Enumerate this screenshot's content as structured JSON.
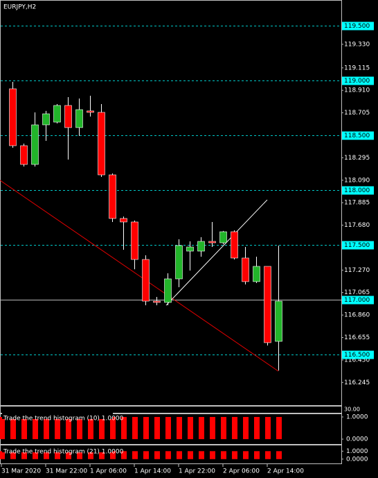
{
  "chart_data": {
    "type": "candlestick",
    "title": "EURJPY,H2",
    "categories": [
      "31 Mar 2020",
      null,
      null,
      null,
      "31 Mar 22:00",
      null,
      null,
      null,
      "1 Apr 06:00",
      null,
      null,
      null,
      "1 Apr 14:00",
      null,
      null,
      null,
      "1 Apr 22:00",
      null,
      null,
      null,
      "2 Apr 06:00",
      null,
      null,
      null,
      "2 Apr 14:00",
      null
    ],
    "open": [
      null,
      118.924,
      118.405,
      118.234,
      118.595,
      118.62,
      118.772,
      118.57,
      118.722,
      118.709,
      118.139,
      117.741,
      117.709,
      117.367,
      116.987,
      116.975,
      117.19,
      117.443,
      117.443,
      117.532,
      117.519,
      117.62,
      117.38,
      117.165,
      117.304,
      116.62
    ],
    "high": [
      null,
      118.987,
      118.424,
      118.709,
      118.722,
      118.785,
      118.848,
      118.835,
      118.861,
      118.785,
      118.152,
      117.759,
      117.722,
      117.405,
      117.025,
      117.241,
      117.551,
      117.532,
      117.57,
      117.709,
      117.627,
      117.633,
      117.481,
      117.392,
      117.304,
      117.494
    ],
    "low": [
      null,
      118.386,
      118.215,
      118.215,
      118.449,
      118.608,
      118.278,
      118.494,
      118.671,
      118.12,
      117.709,
      117.456,
      117.278,
      116.949,
      116.949,
      116.949,
      117.114,
      117.266,
      117.392,
      117.481,
      117.506,
      117.367,
      117.139,
      117.152,
      116.582,
      116.354
    ],
    "close": [
      null,
      118.405,
      118.234,
      118.595,
      118.696,
      118.772,
      118.57,
      118.734,
      118.709,
      118.139,
      117.741,
      117.709,
      117.367,
      116.987,
      116.975,
      117.19,
      117.494,
      117.481,
      117.532,
      117.519,
      117.62,
      117.38,
      117.165,
      117.304,
      116.608,
      116.987
    ],
    "up_color": "#22b52a",
    "down_color": "#ff0000",
    "ylim": [
      116.038,
      119.734
    ],
    "yticks": [
      {
        "value": 119.33,
        "label": "119.330"
      },
      {
        "value": 119.115,
        "label": "119.115"
      },
      {
        "value": 118.91,
        "label": "118.910"
      },
      {
        "value": 118.705,
        "label": "118.705"
      },
      {
        "value": 118.295,
        "label": "118.295"
      },
      {
        "value": 118.09,
        "label": "118.090"
      },
      {
        "value": 117.885,
        "label": "117.885"
      },
      {
        "value": 117.68,
        "label": "117.680"
      },
      {
        "value": 117.27,
        "label": "117.270"
      },
      {
        "value": 117.065,
        "label": "117.065"
      },
      {
        "value": 116.86,
        "label": "116.860"
      },
      {
        "value": 116.655,
        "label": "116.655"
      },
      {
        "value": 116.45,
        "label": "116.450"
      },
      {
        "value": 116.245,
        "label": "116.245"
      }
    ],
    "levels": [
      {
        "value": 119.5,
        "label": "119.500",
        "color": "#00c8c8",
        "style": "dashed"
      },
      {
        "value": 119.0,
        "label": "119.000",
        "color": "#00c8c8",
        "style": "dashed"
      },
      {
        "value": 118.5,
        "label": "118.500",
        "color": "#00c8c8",
        "style": "dashed"
      },
      {
        "value": 118.0,
        "label": "118.000",
        "color": "#00c8c8",
        "style": "dashed"
      },
      {
        "value": 117.5,
        "label": "117.500",
        "color": "#00c8c8",
        "style": "dashed"
      },
      {
        "value": 117.0,
        "label": "117.000",
        "color": "#b8b8b8",
        "style": "solid"
      },
      {
        "value": 116.5,
        "label": "116.500",
        "color": "#00c8c8",
        "style": "dashed"
      }
    ],
    "trendlines": [
      {
        "color": "#e00000",
        "x": [
          -0.125,
          25
        ],
        "values": [
          118.089,
          116.348
        ]
      },
      {
        "color": "#ffffff",
        "x": [
          14.875,
          24
        ],
        "values": [
          116.949,
          117.911
        ]
      }
    ],
    "oscillator_label": "30.00",
    "indicators": [
      {
        "title": "Trade the trend histogram (10) 1.0000",
        "color": "#ff0000",
        "values": [
          1,
          1,
          1,
          1,
          1,
          1,
          1,
          1,
          1,
          1,
          1,
          1,
          1,
          1,
          1,
          1,
          1,
          1,
          1,
          1,
          1,
          1,
          1,
          1,
          1,
          1
        ],
        "ylim": [
          -0.219,
          1.125
        ],
        "yticks": [
          {
            "value": 1,
            "label": "1.0000"
          },
          {
            "value": 0,
            "label": "0.0000"
          }
        ]
      },
      {
        "title": "Trade the trend histogram (21) 1.0000",
        "color": "#ff0000",
        "values": [
          1,
          1,
          1,
          1,
          1,
          1,
          1,
          1,
          1,
          1,
          1,
          1,
          1,
          1,
          1,
          1,
          1,
          1,
          1,
          1,
          1,
          1,
          1,
          1,
          1,
          1
        ],
        "ylim": [
          -0.545,
          1.727
        ],
        "yticks": [
          {
            "value": 1,
            "label": "1.0000"
          },
          {
            "value": 0,
            "label": "0.0000"
          }
        ]
      }
    ]
  }
}
